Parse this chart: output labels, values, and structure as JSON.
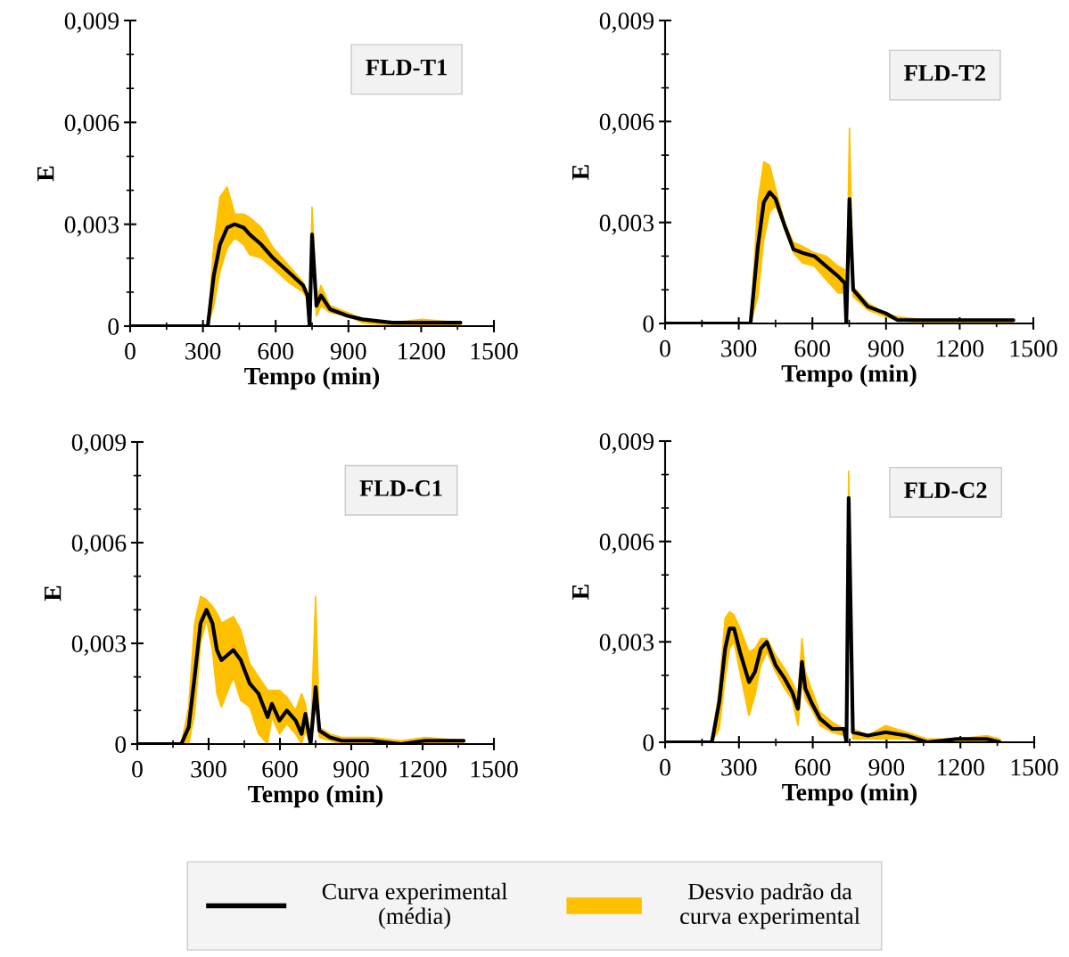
{
  "chart_data": [
    {
      "type": "line",
      "ylabel": "E",
      "xlabel": "Tempo (min)",
      "annotations": [
        "FLD-T1",
        "Desvio padrão da\ncurva experimental"
      ],
      "legend": "bottom",
      "xlim": [
        0,
        1500
      ],
      "xticks": [
        0,
        300,
        600,
        900,
        1200,
        1500
      ],
      "ylim": [
        0,
        0.009
      ],
      "yticks": [
        0,
        {
          "value": 0.003,
          "label": "0,003"
        },
        {
          "value": 0.006,
          "label": "0,006"
        },
        {
          "value": 0.009,
          "label": "0,009"
        }
      ],
      "x": [
        0,
        320,
        345,
        370,
        400,
        431,
        468,
        493,
        541,
        590,
        652,
        713,
        731,
        740,
        750,
        768,
        787,
        824,
        897,
        958,
        1081,
        1203,
        1362
      ],
      "series": [
        {
          "name": "Curva experimental\n(média)",
          "color": "#000000",
          "values": [
            0,
            0,
            0.0015,
            0.0024,
            0.0029,
            0.003,
            0.0029,
            0.0027,
            0.0024,
            0.002,
            0.0016,
            0.0012,
            0.0009,
            0,
            0.0027,
            0.0006,
            0.0009,
            0.0005,
            0.0003,
            0.0002,
            0.0001,
            0.0001,
            0.0001
          ],
          "lower": [
            0,
            0,
            0.0006,
            0.0016,
            0.0023,
            0.0026,
            0.0024,
            0.0021,
            0.002,
            0.0017,
            0.0013,
            0.001,
            0.0008,
            0,
            0.0022,
            0.0003,
            0.0006,
            0.0004,
            0.0003,
            0.0001,
            0,
            0,
            0
          ],
          "upper": [
            0,
            0,
            0.0024,
            0.0038,
            0.0041,
            0.0033,
            0.0033,
            0.0032,
            0.0029,
            0.0023,
            0.0018,
            0.0013,
            0.001,
            0,
            0.0035,
            0.0008,
            0.0012,
            0.0006,
            0.0004,
            0.0002,
            0.0001,
            0.0002,
            0.0001
          ]
        }
      ]
    },
    {
      "type": "line",
      "ylabel": "E",
      "xlabel": "Tempo (min)",
      "annotations": [
        "FLD-T2"
      ],
      "xlim": [
        0,
        1500
      ],
      "xticks": [
        0,
        300,
        600,
        900,
        1200,
        1500
      ],
      "ylim": [
        0,
        0.009
      ],
      "yticks": [
        0,
        {
          "value": 0.003,
          "label": "0,003"
        },
        {
          "value": 0.006,
          "label": "0,006"
        },
        {
          "value": 0.009,
          "label": "0,009"
        }
      ],
      "x": [
        0,
        348,
        378,
        402,
        426,
        450,
        487,
        523,
        559,
        608,
        656,
        705,
        732,
        738,
        751,
        766,
        826,
        899,
        947,
        1068,
        1189,
        1419
      ],
      "series": [
        {
          "color": "#000000",
          "values": [
            0,
            0,
            0.0023,
            0.0036,
            0.0039,
            0.0037,
            0.0029,
            0.0022,
            0.0021,
            0.002,
            0.0017,
            0.0014,
            0.0012,
            0,
            0.0037,
            0.001,
            0.0005,
            0.0003,
            0.0001,
            0.0001,
            0.0001,
            0.0001
          ],
          "lower": [
            0,
            0,
            0.0008,
            0.0025,
            0.0033,
            0.0035,
            0.0028,
            0.0021,
            0.0018,
            0.0017,
            0.0013,
            0.0009,
            0.0009,
            0,
            0.0034,
            0.0008,
            0.0004,
            0.0002,
            0.0001,
            0,
            0,
            0
          ],
          "upper": [
            0,
            0,
            0.0036,
            0.0048,
            0.0047,
            0.004,
            0.003,
            0.0024,
            0.0023,
            0.0021,
            0.002,
            0.0017,
            0.0016,
            0,
            0.0058,
            0.0011,
            0.0006,
            0.0003,
            0.0002,
            0.0001,
            0.0001,
            0.0001
          ]
        }
      ]
    },
    {
      "type": "line",
      "ylabel": "E",
      "xlabel": "Tempo (min)",
      "annotations": [
        "FLD-C1"
      ],
      "xlim": [
        0,
        1500
      ],
      "xticks": [
        0,
        300,
        600,
        900,
        1200,
        1500
      ],
      "ylim": [
        0,
        0.009
      ],
      "yticks": [
        0,
        {
          "value": 0.003,
          "label": "0,003"
        },
        {
          "value": 0.006,
          "label": "0,006"
        },
        {
          "value": 0.009,
          "label": "0,009"
        }
      ],
      "x": [
        0,
        185,
        216,
        241,
        266,
        291,
        316,
        335,
        354,
        404,
        435,
        473,
        510,
        548,
        566,
        598,
        629,
        666,
        691,
        707,
        729,
        750,
        766,
        810,
        860,
        985,
        1110,
        1210,
        1373
      ],
      "series": [
        {
          "color": "#000000",
          "values": [
            0,
            0,
            0.0005,
            0.002,
            0.0036,
            0.004,
            0.0036,
            0.0028,
            0.0025,
            0.0028,
            0.0025,
            0.0018,
            0.0015,
            0.0008,
            0.0012,
            0.0007,
            0.001,
            0.0007,
            0.0003,
            0.0009,
            0,
            0.0017,
            0.0004,
            0.0002,
            0.0001,
            0.0001,
            0,
            0.0001,
            0.0001
          ],
          "lower": [
            0,
            0,
            0,
            0.0009,
            0.003,
            0.0037,
            0.0028,
            0.0015,
            0.0011,
            0.002,
            0.0013,
            0.0011,
            0.0003,
            0,
            0.0008,
            0.0003,
            0.0006,
            0.0003,
            0,
            0.0004,
            0,
            0.0012,
            0.0002,
            0.0001,
            0,
            0,
            0,
            0,
            0
          ],
          "upper": [
            0,
            0,
            0.0011,
            0.0036,
            0.0044,
            0.0043,
            0.0041,
            0.0039,
            0.0036,
            0.0038,
            0.0034,
            0.0024,
            0.002,
            0.0016,
            0.0016,
            0.0016,
            0.0014,
            0.001,
            0.0015,
            0.0012,
            0.0001,
            0.0044,
            0.0005,
            0.0003,
            0.0002,
            0.0002,
            0.0001,
            0.0002,
            0.0001
          ]
        }
      ]
    },
    {
      "type": "line",
      "ylabel": "E",
      "xlabel": "Tempo (min)",
      "annotations": [
        "FLD-C2"
      ],
      "xlim": [
        0,
        1500
      ],
      "xticks": [
        0,
        300,
        600,
        900,
        1200,
        1500
      ],
      "ylim": [
        0,
        0.009
      ],
      "yticks": [
        0,
        {
          "value": 0.003,
          "label": "0,003"
        },
        {
          "value": 0.006,
          "label": "0,006"
        },
        {
          "value": 0.009,
          "label": "0,009"
        }
      ],
      "x": [
        0,
        190,
        220,
        244,
        262,
        280,
        304,
        341,
        365,
        389,
        413,
        449,
        486,
        516,
        540,
        556,
        570,
        594,
        630,
        679,
        727,
        737,
        746,
        763,
        824,
        896,
        981,
        1065,
        1186,
        1307,
        1361
      ],
      "series": [
        {
          "color": "#000000",
          "values": [
            0,
            0,
            0.0012,
            0.0028,
            0.0034,
            0.0034,
            0.0027,
            0.0018,
            0.0021,
            0.0028,
            0.003,
            0.0023,
            0.0019,
            0.0015,
            0.001,
            0.0024,
            0.0016,
            0.0012,
            0.0007,
            0.0004,
            0.0004,
            0,
            0.0073,
            0.0003,
            0.0002,
            0.0003,
            0.0002,
            0,
            0.0001,
            0.0001,
            0
          ],
          "lower": [
            0,
            0,
            0.0004,
            0.0019,
            0.0028,
            0.003,
            0.0021,
            0.0008,
            0.0014,
            0.0023,
            0.0027,
            0.0021,
            0.0016,
            0.0013,
            0.0005,
            0.0018,
            0.0013,
            0.001,
            0.0005,
            0.0003,
            0.0002,
            0,
            0.0065,
            0.0001,
            0.0001,
            0.0001,
            0.0001,
            0,
            0,
            0,
            0
          ],
          "upper": [
            0,
            0,
            0.0016,
            0.0037,
            0.0039,
            0.0038,
            0.0034,
            0.0027,
            0.0028,
            0.0031,
            0.0031,
            0.0026,
            0.0022,
            0.0018,
            0.0014,
            0.0031,
            0.0021,
            0.0016,
            0.0009,
            0.0006,
            0.0004,
            0,
            0.0081,
            0.0004,
            0.0002,
            0.0005,
            0.0003,
            0.0001,
            0.0001,
            0.0002,
            0.0001
          ]
        }
      ]
    }
  ]
}
